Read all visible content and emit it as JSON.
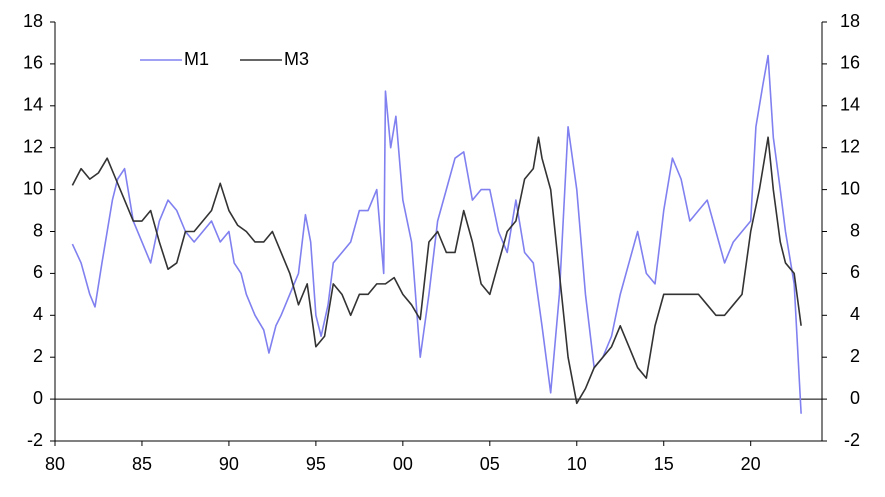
{
  "chart_data": {
    "type": "line",
    "series": [
      {
        "name": "M1",
        "color": "#8080f0",
        "x": [
          1981.0,
          1981.5,
          1982.0,
          1982.3,
          1982.7,
          1983.0,
          1983.3,
          1983.6,
          1984.0,
          1984.5,
          1985.0,
          1985.5,
          1986.0,
          1986.5,
          1987.0,
          1987.5,
          1988.0,
          1988.5,
          1989.0,
          1989.5,
          1990.0,
          1990.3,
          1990.7,
          1991.0,
          1991.5,
          1992.0,
          1992.3,
          1992.7,
          1993.0,
          1993.5,
          1994.0,
          1994.4,
          1994.7,
          1995.0,
          1995.3,
          1995.7,
          1996.0,
          1996.5,
          1997.0,
          1997.5,
          1998.0,
          1998.5,
          1998.9,
          1999.0,
          1999.3,
          1999.6,
          2000.0,
          2000.5,
          2001.0,
          2001.5,
          2002.0,
          2002.5,
          2003.0,
          2003.5,
          2004.0,
          2004.5,
          2005.0,
          2005.5,
          2006.0,
          2006.5,
          2007.0,
          2007.5,
          2008.0,
          2008.5,
          2009.0,
          2009.5,
          2010.0,
          2010.5,
          2011.0,
          2011.5,
          2012.0,
          2012.5,
          2013.0,
          2013.5,
          2014.0,
          2014.5,
          2015.0,
          2015.5,
          2016.0,
          2016.5,
          2017.0,
          2017.5,
          2018.0,
          2018.5,
          2019.0,
          2019.5,
          2020.0,
          2020.3,
          2020.7,
          2021.0,
          2021.3,
          2021.7,
          2022.0,
          2022.5,
          2022.9
        ],
        "values": [
          7.4,
          6.5,
          5.0,
          4.4,
          6.5,
          8.0,
          9.5,
          10.5,
          11.0,
          8.5,
          7.5,
          6.5,
          8.5,
          9.5,
          9.0,
          8.0,
          7.5,
          8.0,
          8.5,
          7.5,
          8.0,
          6.5,
          6.0,
          5.0,
          4.0,
          3.3,
          2.2,
          3.5,
          4.0,
          5.0,
          6.0,
          8.8,
          7.5,
          4.0,
          3.0,
          4.5,
          6.5,
          7.0,
          7.5,
          9.0,
          9.0,
          10.0,
          6.0,
          14.7,
          12.0,
          13.5,
          9.5,
          7.5,
          2.0,
          5.0,
          8.5,
          10.0,
          11.5,
          11.8,
          9.5,
          10.0,
          10.0,
          8.0,
          7.0,
          9.5,
          7.0,
          6.5,
          3.5,
          0.3,
          5.0,
          13.0,
          10.0,
          5.0,
          1.5,
          2.0,
          3.0,
          5.0,
          6.5,
          8.0,
          6.0,
          5.5,
          9.0,
          11.5,
          10.5,
          8.5,
          9.0,
          9.5,
          8.0,
          6.5,
          7.5,
          8.0,
          8.5,
          13.0,
          15.0,
          16.4,
          12.5,
          10.0,
          8.0,
          5.5,
          -0.7
        ]
      },
      {
        "name": "M3",
        "color": "#333333",
        "x": [
          1981.0,
          1981.5,
          1982.0,
          1982.5,
          1983.0,
          1983.5,
          1984.0,
          1984.5,
          1985.0,
          1985.5,
          1986.0,
          1986.5,
          1987.0,
          1987.5,
          1988.0,
          1988.5,
          1989.0,
          1989.5,
          1990.0,
          1990.5,
          1991.0,
          1991.5,
          1992.0,
          1992.5,
          1993.0,
          1993.5,
          1994.0,
          1994.5,
          1995.0,
          1995.5,
          1996.0,
          1996.5,
          1997.0,
          1997.5,
          1998.0,
          1998.5,
          1999.0,
          1999.5,
          2000.0,
          2000.5,
          2001.0,
          2001.5,
          2002.0,
          2002.5,
          2003.0,
          2003.5,
          2004.0,
          2004.5,
          2005.0,
          2005.5,
          2006.0,
          2006.5,
          2007.0,
          2007.5,
          2007.8,
          2008.0,
          2008.5,
          2009.0,
          2009.5,
          2010.0,
          2010.5,
          2011.0,
          2011.5,
          2012.0,
          2012.5,
          2013.0,
          2013.5,
          2014.0,
          2014.5,
          2015.0,
          2015.5,
          2016.0,
          2016.5,
          2017.0,
          2017.5,
          2018.0,
          2018.5,
          2019.0,
          2019.5,
          2020.0,
          2020.5,
          2021.0,
          2021.3,
          2021.7,
          2022.0,
          2022.5,
          2022.9
        ],
        "values": [
          10.2,
          11.0,
          10.5,
          10.8,
          11.5,
          10.5,
          9.5,
          8.5,
          8.5,
          9.0,
          7.5,
          6.2,
          6.5,
          8.0,
          8.0,
          8.5,
          9.0,
          10.3,
          9.0,
          8.3,
          8.0,
          7.5,
          7.5,
          8.0,
          7.0,
          6.0,
          4.5,
          5.5,
          2.5,
          3.0,
          5.5,
          5.0,
          4.0,
          5.0,
          5.0,
          5.5,
          5.5,
          5.8,
          5.0,
          4.5,
          3.8,
          7.5,
          8.0,
          7.0,
          7.0,
          9.0,
          7.5,
          5.5,
          5.0,
          6.5,
          8.0,
          8.5,
          10.5,
          11.0,
          12.5,
          11.5,
          10.0,
          6.0,
          2.0,
          -0.2,
          0.5,
          1.5,
          2.0,
          2.5,
          3.5,
          2.5,
          1.5,
          1.0,
          3.5,
          5.0,
          5.0,
          5.0,
          5.0,
          5.0,
          4.5,
          4.0,
          4.0,
          4.5,
          5.0,
          8.0,
          10.0,
          12.5,
          10.0,
          7.5,
          6.5,
          6.0,
          3.5
        ]
      }
    ],
    "xlim": [
      1980,
      2024.1
    ],
    "xticks": [
      {
        "value": 1980,
        "label": "80"
      },
      {
        "value": 1985,
        "label": "85"
      },
      {
        "value": 1990,
        "label": "90"
      },
      {
        "value": 1995,
        "label": "95"
      },
      {
        "value": 2000,
        "label": "00"
      },
      {
        "value": 2005,
        "label": "05"
      },
      {
        "value": 2010,
        "label": "10"
      },
      {
        "value": 2015,
        "label": "15"
      },
      {
        "value": 2020,
        "label": "20"
      }
    ],
    "ylim": [
      -2,
      18
    ],
    "yticks": [
      -2,
      0,
      2,
      4,
      6,
      8,
      10,
      12,
      14,
      16,
      18
    ],
    "y2lim": [
      -2,
      18
    ],
    "y2ticks": [
      -2,
      0,
      2,
      4,
      6,
      8,
      10,
      12,
      14,
      16,
      18
    ],
    "grid": false
  }
}
